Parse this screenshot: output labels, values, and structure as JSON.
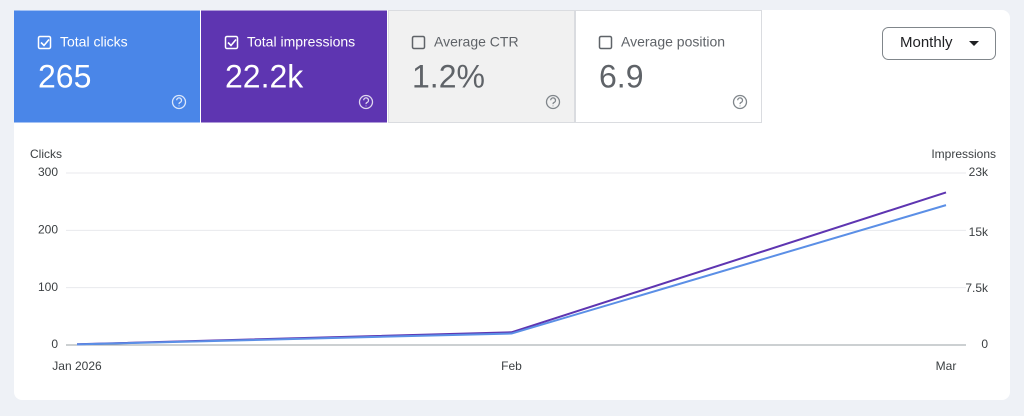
{
  "cards": [
    {
      "label": "Total clicks",
      "value": "265",
      "selected": true,
      "color": "#4a86e8"
    },
    {
      "label": "Total impressions",
      "value": "22.2k",
      "selected": true,
      "color": "#5e35b1"
    },
    {
      "label": "Average CTR",
      "value": "1.2%",
      "selected": false,
      "color": "#f1f1f1"
    },
    {
      "label": "Average position",
      "value": "6.9",
      "selected": false,
      "color": "#ffffff"
    }
  ],
  "controls": {
    "period": "Monthly"
  },
  "chart_data": {
    "type": "line",
    "ylabel": "Clicks",
    "y2label": "Impressions",
    "categories": [
      "Jan 2026",
      "Feb",
      "Mar"
    ],
    "series": [
      {
        "name": "Total impressions",
        "color": "#5e35b1",
        "axis": "y2",
        "values": [
          100,
          1700,
          20400
        ]
      },
      {
        "name": "Total clicks",
        "color": "#5b8fe6",
        "values": [
          1,
          20,
          244
        ]
      }
    ],
    "ylim": [
      0,
      300
    ],
    "yticks": [
      0,
      100,
      200,
      300
    ],
    "y2lim": [
      0,
      23000
    ],
    "y2ticks": [
      0,
      {
        "value": 7500,
        "label": "7.5k"
      },
      {
        "value": 15000,
        "label": "15k"
      },
      {
        "value": 23000,
        "label": "23k"
      }
    ],
    "grid": true
  }
}
